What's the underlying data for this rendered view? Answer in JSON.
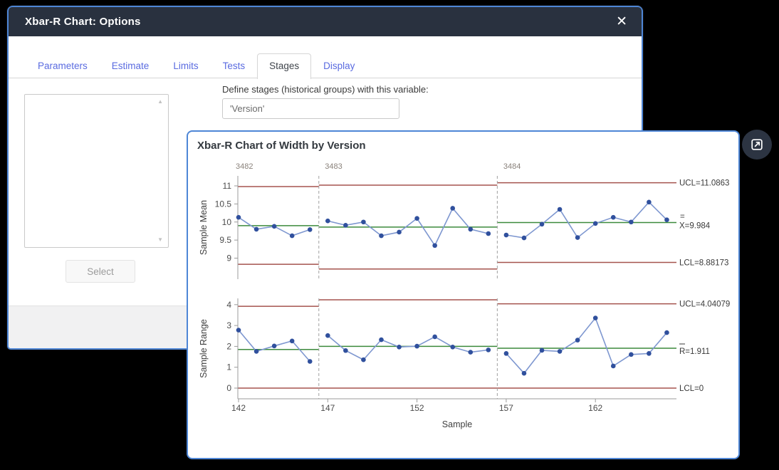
{
  "window": {
    "title": "Xbar-R Chart: Options"
  },
  "icons": {
    "close_glyph": "✕",
    "scroll_up_glyph": "▲",
    "scroll_down_glyph": "▼"
  },
  "tabs": [
    {
      "label": "Parameters",
      "active": false
    },
    {
      "label": "Estimate",
      "active": false
    },
    {
      "label": "Limits",
      "active": false
    },
    {
      "label": "Tests",
      "active": false
    },
    {
      "label": "Stages",
      "active": true
    },
    {
      "label": "Display",
      "active": false
    }
  ],
  "stages_tab": {
    "variables_list_items": [],
    "select_button_label": "Select",
    "define_label": "Define stages (historical groups) with this variable:",
    "variable_value": "'Version'"
  },
  "chart_window": {
    "title": "Xbar-R Chart of Width by Version"
  },
  "colors": {
    "accent_blue": "#4e86d6",
    "titlebar_bg": "#29313f",
    "tab_blue": "#5a6be0",
    "limit_line_red": "#a5534e",
    "center_line_green": "#3c8a3c",
    "marker_blue": "#30509d",
    "series_line_blue": "#7e97d0",
    "stage_boundary_gray": "#a0a0a0",
    "axis_gray": "#9b9b9b",
    "stage_label_gray": "#8a827b"
  },
  "chart_data": {
    "type": "line",
    "title": "Xbar-R Chart of Width by Version",
    "xlabel": "Sample",
    "x_start": 142,
    "x_end": 166,
    "x_ticks": [
      142,
      147,
      152,
      157,
      162
    ],
    "stages": [
      {
        "label": "3482",
        "start": 142,
        "end": 146
      },
      {
        "label": "3483",
        "start": 147,
        "end": 156
      },
      {
        "label": "3484",
        "start": 157,
        "end": 166
      }
    ],
    "panels": [
      {
        "ylabel": "Sample Mean",
        "y_ticks": [
          9,
          9.5,
          10,
          10.5,
          11
        ],
        "ylim": [
          8.42,
          11.28
        ],
        "values": [
          10.13,
          9.8,
          9.88,
          9.62,
          9.79,
          10.03,
          9.91,
          10.0,
          9.62,
          9.72,
          10.1,
          9.35,
          10.38,
          9.8,
          9.68,
          9.64,
          9.56,
          9.94,
          10.35,
          9.57,
          9.96,
          10.13,
          10.0,
          10.55,
          10.06
        ],
        "stage_limits": [
          {
            "ucl": 10.98,
            "cl": 9.9,
            "lcl": 8.83
          },
          {
            "ucl": 11.02,
            "cl": 9.86,
            "lcl": 8.7
          },
          {
            "ucl": 11.0863,
            "cl": 9.984,
            "lcl": 8.88173
          }
        ],
        "right_labels": {
          "ucl": "UCL=11.0863",
          "cl": "X=9.984",
          "cl_prefix": "=",
          "lcl": "LCL=8.88173"
        }
      },
      {
        "ylabel": "Sample Range",
        "y_ticks": [
          0,
          1,
          2,
          3,
          4
        ],
        "ylim": [
          -0.51,
          4.3
        ],
        "values": [
          2.78,
          1.76,
          2.02,
          2.26,
          1.28,
          2.52,
          1.8,
          1.36,
          2.32,
          1.97,
          2.01,
          2.46,
          1.97,
          1.72,
          1.83,
          1.66,
          0.71,
          1.81,
          1.76,
          2.3,
          3.36,
          1.06,
          1.61,
          1.66,
          2.66
        ],
        "stage_limits": [
          {
            "ucl": 3.92,
            "cl": 1.85,
            "lcl": 0
          },
          {
            "ucl": 4.23,
            "cl": 2.0,
            "lcl": 0
          },
          {
            "ucl": 4.04079,
            "cl": 1.911,
            "lcl": 0
          }
        ],
        "right_labels": {
          "ucl": "UCL=4.04079",
          "cl": "R=1.911",
          "cl_overbar": true,
          "lcl": "LCL=0"
        }
      }
    ],
    "legend_position": "none",
    "grid": false
  }
}
